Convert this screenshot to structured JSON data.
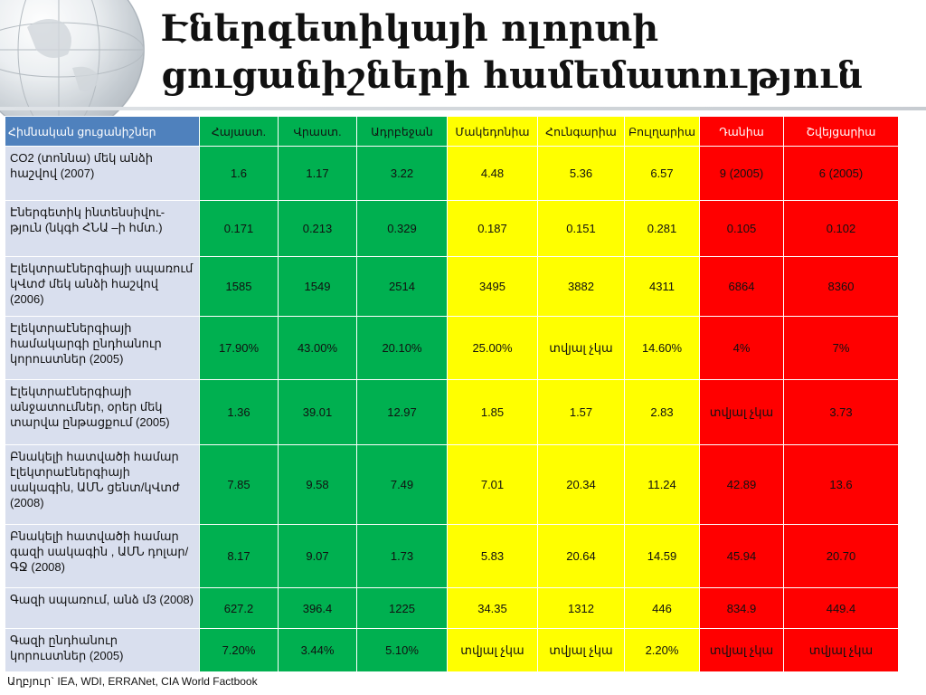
{
  "title": "Էներգետիկայի ոլորտի ցուցանիշների համեմատություն",
  "colors": {
    "green": "#00b050",
    "yellow": "#ffff00",
    "red": "#ff0000",
    "header_blue": "#4f81bd",
    "label_bg": "#d9dfee"
  },
  "table": {
    "headers": [
      "Հիմնական ցուցանիշներ",
      "Հայաստ.",
      "Վրաստ.",
      "Ադրբեջան",
      "Մակեդոնիա",
      "Հունգարիա",
      "Բուլղարիա",
      "Դանիա",
      "Շվեյցարիա"
    ],
    "rows": [
      {
        "label": "CO2 (տոննա) մեկ անձի հաշվով (2007)",
        "values": [
          "1.6",
          "1.17",
          "3.22",
          "4.48",
          "5.36",
          "6.57",
          "9 (2005)",
          "6 (2005)"
        ]
      },
      {
        "label": "Էներգետիկ ինտենսիվու-թյուն (նկգհ ՀՆԱ –ի հմտ.)",
        "values": [
          "0.171",
          "0.213",
          "0.329",
          "0.187",
          "0.151",
          "0.281",
          "0.105",
          "0.102"
        ]
      },
      {
        "label": "Էլեկտրաէներգիայի սպառում կՎտժ մեկ անձի հաշվով (2006)",
        "values": [
          "1585",
          "1549",
          "2514",
          "3495",
          "3882",
          "4311",
          "6864",
          "8360"
        ]
      },
      {
        "label": "Էլեկտրաէներգիայի համակարգի ընդհանուր կորուստներ (2005)",
        "values": [
          "17.90%",
          "43.00%",
          "20.10%",
          "25.00%",
          "տվյալ չկա",
          "14.60%",
          "4%",
          "7%"
        ]
      },
      {
        "label": "Էլեկտրաէներգիայի անջատումներ, օրեր մեկ տարվա ընթացքում (2005)",
        "values": [
          "1.36",
          "39.01",
          "12.97",
          "1.85",
          "1.57",
          "2.83",
          "տվյալ չկա",
          "3.73"
        ]
      },
      {
        "label": "Բնակելի հատվածի համար էլեկտրաէներգիայի սակագին, ԱՄՆ ցենտ/կՎտժ (2008)",
        "values": [
          "7.85",
          "9.58",
          "7.49",
          "7.01",
          "20.34",
          "11.24",
          "42.89",
          "13.6"
        ]
      },
      {
        "label": "Բնակելի հատվածի համար գազի սակագին , ԱՄՆ դոլար/ԳՋ (2008)",
        "values": [
          "8.17",
          "9.07",
          "1.73",
          "5.83",
          "20.64",
          "14.59",
          "45.94",
          "20.70"
        ]
      },
      {
        "label": "Գազի սպառում, անձ մ3 (2008)",
        "values": [
          "627.2",
          "396.4",
          "1225",
          "34.35",
          "1312",
          "446",
          "834.9",
          "449.4"
        ]
      },
      {
        "label": "Գազի ընդհանուր կորուստներ (2005)",
        "values": [
          "7.20%",
          "3.44%",
          "5.10%",
          "տվյալ չկա",
          "տվյալ չկա",
          "2.20%",
          "տվյալ չկա",
          "տվյալ չկա"
        ]
      }
    ]
  },
  "source": "Աղբյուր` IEA, WDI, ERRANet, CIA World Factbook"
}
